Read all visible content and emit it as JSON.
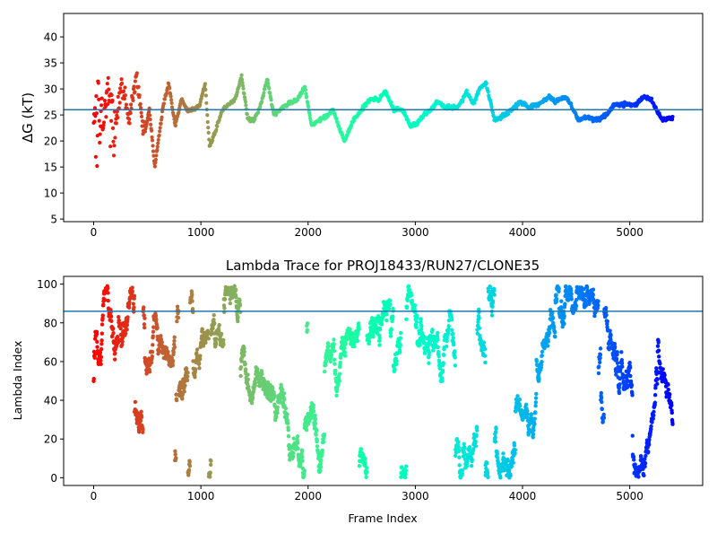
{
  "chart_data": [
    {
      "type": "scatter",
      "title": "",
      "xlabel": "",
      "ylabel": "ΔG (kT)",
      "xlim": [
        -280,
        5680
      ],
      "ylim": [
        4.5,
        44.5
      ],
      "xticks": [
        0,
        1000,
        2000,
        3000,
        4000,
        5000
      ],
      "yticks": [
        5,
        10,
        15,
        20,
        25,
        30,
        35,
        40
      ],
      "hline": 26,
      "hline_color": "#1f77b4",
      "colormap": "rainbow (reversed: red at frame 0, violet at last frame)",
      "n_frames": 5400,
      "anchors": [
        [
          0,
          26
        ],
        [
          70,
          22
        ],
        [
          130,
          30
        ],
        [
          190,
          21
        ],
        [
          260,
          31
        ],
        [
          330,
          24
        ],
        [
          400,
          33
        ],
        [
          470,
          21
        ],
        [
          520,
          26
        ],
        [
          570,
          15
        ],
        [
          610,
          21
        ],
        [
          650,
          27
        ],
        [
          700,
          31
        ],
        [
          760,
          23
        ],
        [
          820,
          28
        ],
        [
          870,
          26
        ],
        [
          930,
          26
        ],
        [
          990,
          27
        ],
        [
          1040,
          31
        ],
        [
          1080,
          19
        ],
        [
          1140,
          22
        ],
        [
          1200,
          26
        ],
        [
          1260,
          27
        ],
        [
          1320,
          28
        ],
        [
          1380,
          32.5
        ],
        [
          1440,
          24
        ],
        [
          1500,
          24
        ],
        [
          1560,
          27
        ],
        [
          1620,
          32
        ],
        [
          1680,
          25
        ],
        [
          1740,
          26
        ],
        [
          1800,
          27
        ],
        [
          1900,
          28
        ],
        [
          1970,
          30.5
        ],
        [
          2030,
          23
        ],
        [
          2100,
          24
        ],
        [
          2160,
          24.5
        ],
        [
          2230,
          26
        ],
        [
          2300,
          22
        ],
        [
          2340,
          20
        ],
        [
          2420,
          24
        ],
        [
          2500,
          26
        ],
        [
          2580,
          28
        ],
        [
          2660,
          28
        ],
        [
          2720,
          29.5
        ],
        [
          2800,
          26
        ],
        [
          2880,
          26
        ],
        [
          2950,
          23
        ],
        [
          3000,
          23
        ],
        [
          3080,
          25
        ],
        [
          3150,
          26
        ],
        [
          3200,
          27.5
        ],
        [
          3280,
          26.5
        ],
        [
          3400,
          26.5
        ],
        [
          3480,
          29.5
        ],
        [
          3540,
          27
        ],
        [
          3600,
          30
        ],
        [
          3660,
          31
        ],
        [
          3740,
          24
        ],
        [
          3800,
          24.5
        ],
        [
          3900,
          26
        ],
        [
          3980,
          27.5
        ],
        [
          4050,
          26.5
        ],
        [
          4150,
          27
        ],
        [
          4250,
          28.5
        ],
        [
          4300,
          27.5
        ],
        [
          4400,
          28.5
        ],
        [
          4450,
          27
        ],
        [
          4520,
          24
        ],
        [
          4600,
          24.5
        ],
        [
          4700,
          24
        ],
        [
          4780,
          25
        ],
        [
          4860,
          27
        ],
        [
          4950,
          27
        ],
        [
          5060,
          27
        ],
        [
          5130,
          28.5
        ],
        [
          5200,
          28
        ],
        [
          5300,
          24
        ],
        [
          5400,
          24.5
        ]
      ]
    },
    {
      "type": "scatter",
      "title": "Lambda Trace for PROJ18433/RUN27/CLONE35",
      "xlabel": "Frame Index",
      "ylabel": "Lambda Index",
      "xlim": [
        -280,
        5680
      ],
      "ylim": [
        -4,
        104
      ],
      "xticks": [
        0,
        1000,
        2000,
        3000,
        4000,
        5000
      ],
      "yticks": [
        0,
        20,
        40,
        60,
        80,
        100
      ],
      "hline": 86,
      "hline_color": "#1f77b4",
      "colormap": "rainbow (reversed: red at frame 0, violet at last frame)",
      "value_range": [
        0,
        99
      ],
      "n_frames": 5400
    }
  ]
}
